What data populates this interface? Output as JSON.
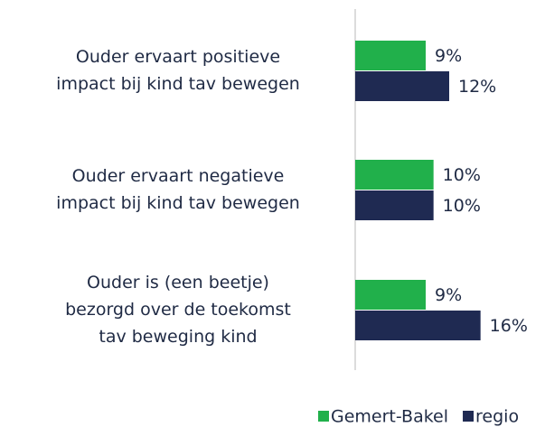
{
  "chart_data": {
    "type": "bar",
    "orientation": "horizontal",
    "categories": [
      "Ouder ervaart positieve\nimpact bij kind tav bewegen",
      "Ouder ervaart negatieve\nimpact bij kind tav bewegen",
      "Ouder is (een beetje)\nbezorgd over de toekomst\ntav beweging kind"
    ],
    "series": [
      {
        "name": "Gemert-Bakel",
        "color": "#21b04b",
        "values": [
          9,
          10,
          9
        ],
        "value_labels": [
          "9%",
          "10%",
          "9%"
        ]
      },
      {
        "name": "regio",
        "color": "#1f2a52",
        "values": [
          12,
          10,
          16
        ],
        "value_labels": [
          "12%",
          "10%",
          "16%"
        ]
      }
    ],
    "xlim": [
      0,
      24
    ],
    "legend": "bottom"
  }
}
